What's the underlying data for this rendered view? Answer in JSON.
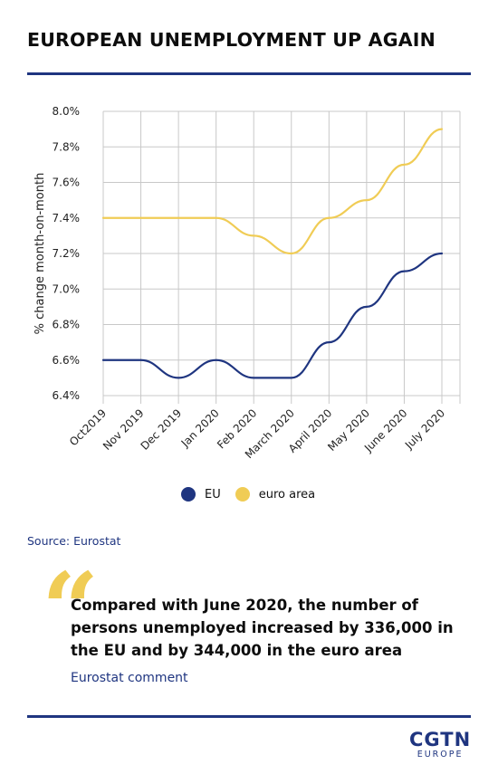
{
  "title": "EUROPEAN UNEMPLOYMENT UP AGAIN",
  "source": "Source: Eurostat",
  "quote": {
    "text": "Compared with June 2020, the number of persons unemployed increased by 336,000 in the EU and by 344,000 in the euro area",
    "attribution": "Eurostat comment"
  },
  "logo": {
    "main": "CGTN",
    "sub": "EUROPE"
  },
  "colors": {
    "eu": "#1f3580",
    "euro_area": "#f0cc55",
    "grid": "#c8c8c8",
    "rule": "#1f3580"
  },
  "chart_data": {
    "type": "line",
    "title": "",
    "xlabel": "",
    "ylabel": "% change month-on-month",
    "categories": [
      "Oct2019",
      "Nov 2019",
      "Dec 2019",
      "Jan 2020",
      "Feb 2020",
      "March 2020",
      "April 2020",
      "May 2020",
      "June 2020",
      "July 2020"
    ],
    "ylim": [
      6.4,
      8.0
    ],
    "yticks": [
      "8.0%",
      "7.8%",
      "7.6%",
      "7.4%",
      "7.2%",
      "7.0%",
      "6.8%",
      "6.6%",
      "6.4%"
    ],
    "ytick_values": [
      8.0,
      7.8,
      7.6,
      7.4,
      7.2,
      7.0,
      6.8,
      6.6,
      6.4
    ],
    "grid": true,
    "legend_position": "bottom-center",
    "series": [
      {
        "name": "EU",
        "values": [
          6.6,
          6.6,
          6.5,
          6.6,
          6.5,
          6.5,
          6.7,
          6.9,
          7.1,
          7.2
        ]
      },
      {
        "name": "euro area",
        "values": [
          7.4,
          7.4,
          7.4,
          7.4,
          7.3,
          7.2,
          7.4,
          7.5,
          7.7,
          7.9
        ]
      }
    ]
  }
}
